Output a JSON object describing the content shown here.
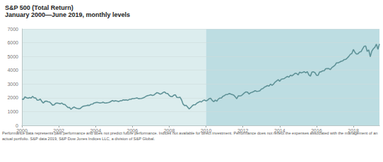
{
  "chart_data": {
    "type": "line",
    "title": "S&P 500 (Total Return)",
    "subtitle": "January 2000—June 2019, monthly levels",
    "note": "Performance data represents past performance and does not predict future performance. Indices not available for direct investment. Performance does not reflect the expenses associated with the management of an actual portfolio. S&P data 2019, S&P Dow Jones Indices LLC, a division of S&P Global.",
    "color": "#5f9297",
    "grid": true,
    "ylim": [
      0,
      7000
    ],
    "yticks": [
      0,
      1000,
      2000,
      3000,
      4000,
      5000,
      6000,
      7000
    ],
    "bands": [
      {
        "from": "2000",
        "to": "2010",
        "color": "#dcedee"
      },
      {
        "from": "2010",
        "color": "#bddde2"
      }
    ],
    "categories": [
      "2000",
      null,
      null,
      null,
      null,
      null,
      null,
      null,
      null,
      null,
      null,
      null,
      null,
      null,
      null,
      null,
      null,
      null,
      null,
      null,
      null,
      null,
      null,
      null,
      "2002",
      null,
      null,
      null,
      null,
      null,
      null,
      null,
      null,
      null,
      null,
      null,
      null,
      null,
      null,
      null,
      null,
      null,
      null,
      null,
      null,
      null,
      null,
      null,
      "2004",
      null,
      null,
      null,
      null,
      null,
      null,
      null,
      null,
      null,
      null,
      null,
      null,
      null,
      null,
      null,
      null,
      null,
      null,
      null,
      null,
      null,
      null,
      null,
      "2006",
      null,
      null,
      null,
      null,
      null,
      null,
      null,
      null,
      null,
      null,
      null,
      null,
      null,
      null,
      null,
      null,
      null,
      null,
      null,
      null,
      null,
      null,
      null,
      "2008",
      null,
      null,
      null,
      null,
      null,
      null,
      null,
      null,
      null,
      null,
      null,
      null,
      null,
      null,
      null,
      null,
      null,
      null,
      null,
      null,
      null,
      null,
      null,
      "2010",
      null,
      null,
      null,
      null,
      null,
      null,
      null,
      null,
      null,
      null,
      null,
      null,
      null,
      null,
      null,
      null,
      null,
      null,
      null,
      null,
      null,
      null,
      null,
      "2012",
      null,
      null,
      null,
      null,
      null,
      null,
      null,
      null,
      null,
      null,
      null,
      null,
      null,
      null,
      null,
      null,
      null,
      null,
      null,
      null,
      null,
      null,
      null,
      "2014",
      null,
      null,
      null,
      null,
      null,
      null,
      null,
      null,
      null,
      null,
      null,
      null,
      null,
      null,
      null,
      null,
      null,
      null,
      null,
      null,
      null,
      null,
      null,
      "2016",
      null,
      null,
      null,
      null,
      null,
      null,
      null,
      null,
      null,
      null,
      null,
      null,
      null,
      null,
      null,
      null,
      null,
      null,
      null,
      null,
      null,
      null,
      null,
      "2018",
      null,
      null,
      null,
      null,
      null,
      null,
      null,
      null,
      null,
      null,
      null,
      null,
      null,
      null,
      null,
      null,
      null
    ],
    "values": [
      1920,
      1884,
      2069,
      2006,
      1965,
      2014,
      1983,
      2106,
      1995,
      1987,
      1830,
      1837,
      1903,
      1729,
      1619,
      1745,
      1757,
      1714,
      1697,
      1591,
      1462,
      1490,
      1604,
      1619,
      1595,
      1564,
      1623,
      1525,
      1513,
      1406,
      1296,
      1304,
      1162,
      1265,
      1338,
      1261,
      1228,
      1209,
      1221,
      1322,
      1392,
      1410,
      1434,
      1462,
      1447,
      1529,
      1542,
      1623,
      1653,
      1676,
      1651,
      1625,
      1648,
      1680,
      1624,
      1630,
      1648,
      1673,
      1740,
      1800,
      1756,
      1793,
      1761,
      1728,
      1783,
      1785,
      1852,
      1834,
      1849,
      1818,
      1887,
      1888,
      1938,
      1943,
      1967,
      1994,
      1936,
      1939,
      1951,
      1997,
      2048,
      2115,
      2155,
      2186,
      2219,
      2176,
      2200,
      2297,
      2377,
      2338,
      2265,
      2299,
      2385,
      2423,
      2321,
      2306,
      2168,
      2097,
      2088,
      2190,
      2219,
      2032,
      2015,
      2044,
      1862,
      1549,
      1438,
      1453,
      1330,
      1189,
      1293,
      1417,
      1496,
      1499,
      1612,
      1670,
      1733,
      1700,
      1802,
      1837,
      1771,
      1826,
      1936,
      1966,
      1809,
      1715,
      1835,
      1752,
      1908,
      1981,
      1981,
      2114,
      2164,
      2238,
      2239,
      2305,
      2279,
      2241,
      2195,
      2076,
      1930,
      2141,
      2136,
      2159,
      2256,
      2353,
      2431,
      2416,
      2271,
      2364,
      2397,
      2451,
      2514,
      2468,
      2482,
      2504,
      2634,
      2670,
      2770,
      2823,
      2889,
      2850,
      2995,
      2908,
      2999,
      3137,
      3229,
      3315,
      3200,
      3347,
      3375,
      3400,
      3480,
      3552,
      3503,
      3643,
      3592,
      3679,
      3779,
      3769,
      3656,
      3866,
      3805,
      3841,
      3891,
      3815,
      3895,
      3660,
      3569,
      3870,
      3882,
      3821,
      3632,
      3627,
      3873,
      3888,
      3958,
      3968,
      4115,
      4120,
      4121,
      4046,
      4196,
      4278,
      4359,
      4532,
      4537,
      4584,
      4648,
      4677,
      4773,
      4788,
      4887,
      5001,
      5155,
      5212,
      5510,
      5307,
      5172,
      5192,
      5317,
      5350,
      5549,
      5730,
      5762,
      5368,
      5477,
      4984,
      5383,
      5556,
      5664,
      5893,
      5519,
      5908
    ]
  }
}
